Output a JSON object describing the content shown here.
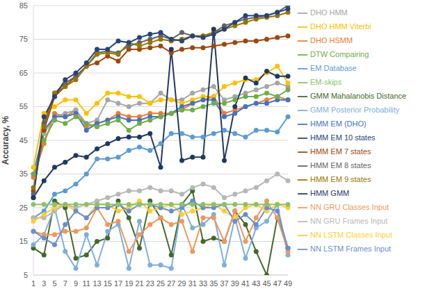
{
  "chart_data": {
    "type": "line",
    "y_label": "Accuracy, %",
    "categories": [
      1,
      3,
      5,
      7,
      9,
      11,
      13,
      15,
      17,
      19,
      21,
      23,
      25,
      27,
      29,
      31,
      33,
      35,
      37,
      39,
      41,
      43,
      45,
      47,
      49
    ],
    "ylim": [
      5,
      85
    ],
    "yticks": [
      5,
      15,
      25,
      35,
      45,
      55,
      65,
      75,
      85
    ],
    "grid": true,
    "legend": "right",
    "marker": "circle",
    "series": [
      {
        "name": "EM Database",
        "color": "#5B9BD5",
        "values": [
          22,
          24,
          29,
          30,
          32,
          35,
          39.5,
          39.5,
          40,
          42,
          43,
          42,
          44,
          47,
          47,
          46,
          46,
          47,
          48,
          47,
          46,
          48,
          48,
          47.5,
          52
        ]
      },
      {
        "name": "DHO HSMM",
        "color": "#ED7D31",
        "values": [
          34,
          44,
          53,
          52,
          54,
          49,
          50,
          51,
          53,
          52,
          52,
          53,
          53,
          53,
          54,
          56,
          57,
          58,
          53,
          54,
          55,
          56,
          57,
          58,
          57
        ]
      },
      {
        "name": "DHO HMM",
        "color": "#A5A5A5",
        "values": [
          35,
          47,
          52,
          53,
          54,
          50,
          51,
          57,
          56,
          55,
          56,
          56,
          59,
          57,
          57,
          59,
          60,
          61,
          57,
          58,
          59,
          60,
          61,
          62,
          61
        ]
      },
      {
        "name": "DHO HMM Viterbi",
        "color": "#FFC000",
        "values": [
          37,
          53,
          55,
          57,
          57,
          53,
          56,
          59,
          59,
          58,
          58,
          56,
          57,
          57,
          56,
          57,
          58,
          58,
          61,
          62,
          63,
          63,
          65,
          67,
          62
        ]
      },
      {
        "name": "HMM EM (DHO)",
        "color": "#4472C4",
        "values": [
          35,
          48,
          52,
          52,
          53,
          48,
          50,
          51,
          52,
          51,
          51,
          52,
          52,
          53,
          55,
          56,
          57,
          57,
          52,
          53,
          55,
          56,
          56,
          57,
          57
        ]
      },
      {
        "name": "DTW Compairing",
        "color": "#70AD47",
        "values": [
          35,
          45,
          51,
          50,
          52,
          50,
          49,
          50,
          51,
          48,
          50,
          51,
          52,
          53,
          54,
          54,
          55,
          56,
          56,
          57,
          58,
          58,
          59,
          58,
          60
        ]
      },
      {
        "name": "HMM EM 7 states",
        "color": "#9E480E",
        "values": [
          30,
          48,
          58,
          61,
          64,
          67,
          68,
          70,
          68.5,
          72,
          72,
          72.5,
          73,
          71,
          72,
          72.5,
          72.5,
          73,
          73.5,
          74,
          74.5,
          74.5,
          75,
          75.5,
          76
        ]
      },
      {
        "name": "HMM EM 8 states",
        "color": "#636363",
        "values": [
          29,
          50,
          59,
          62,
          64,
          67,
          71,
          71.5,
          71,
          73,
          74,
          75,
          76,
          75,
          77,
          76,
          76,
          77,
          79,
          80,
          81,
          81.5,
          82,
          83,
          85
        ]
      },
      {
        "name": "HMM EM 9 states",
        "color": "#997300",
        "values": [
          31,
          49,
          59,
          61,
          63,
          67,
          70.5,
          71,
          70.5,
          74,
          73,
          74,
          75,
          74.5,
          75,
          76,
          76,
          77,
          78,
          79,
          80,
          81,
          81.5,
          82,
          83
        ]
      },
      {
        "name": "HMM EM 10 states",
        "color": "#264478",
        "values": [
          28,
          52,
          58,
          63,
          65,
          68,
          72,
          72,
          74.5,
          74,
          75.5,
          76.5,
          77,
          75,
          74.5,
          76,
          75.5,
          76.5,
          78,
          80,
          82,
          82,
          82,
          83,
          84
        ]
      },
      {
        "name": "HMM GMM",
        "color": "#1F3864",
        "values": [
          28,
          33,
          37,
          38.5,
          40.5,
          40,
          42.5,
          44,
          45.5,
          46,
          46,
          47,
          37,
          72,
          39,
          40,
          40,
          78,
          39,
          55,
          63.5,
          62,
          65.5,
          64,
          64
        ]
      },
      {
        "name": "GMM Mahalanobis Distance",
        "color": "#43682B",
        "values": [
          13,
          11,
          27,
          25,
          10,
          11,
          15,
          16,
          27,
          22,
          13,
          27,
          22,
          11,
          26,
          30,
          15,
          16,
          15,
          24,
          20,
          12,
          5,
          22,
          13
        ]
      },
      {
        "name": "GMM Posterior Probability",
        "color": "#7CAFDD",
        "values": [
          14,
          17,
          25,
          12,
          7,
          17,
          8,
          18,
          20,
          7,
          21,
          8,
          8,
          7,
          26,
          19,
          20,
          23,
          8,
          22,
          10,
          19,
          21,
          26,
          11
        ]
      },
      {
        "name": "NN GRU Classes Input",
        "color": "#F1975A",
        "values": [
          18,
          17,
          17,
          18,
          18,
          19,
          25,
          20,
          21,
          12,
          17,
          20,
          22,
          20,
          21,
          12,
          22,
          22,
          15,
          24,
          15,
          22,
          27,
          22,
          12
        ]
      },
      {
        "name": "NN GRU Frames Input",
        "color": "#B7B7B7",
        "values": [
          22,
          22,
          24,
          26,
          25,
          26,
          27,
          28,
          29,
          30,
          30,
          31,
          30,
          30,
          29,
          31,
          32,
          31,
          28,
          29,
          30,
          31,
          33,
          35,
          33
        ]
      },
      {
        "name": "NN LSTM Classes Input",
        "color": "#FFCD33",
        "values": [
          21,
          23,
          25,
          26,
          24,
          22,
          26,
          26,
          24,
          25,
          27,
          24,
          25,
          26,
          23,
          24,
          25,
          26,
          24,
          22,
          25,
          26,
          24,
          26,
          25
        ]
      },
      {
        "name": "NN LSTM Frames Input",
        "color": "#698ED0",
        "values": [
          18,
          16,
          14,
          20,
          24,
          22,
          25,
          25,
          26,
          24,
          26,
          26,
          25,
          24,
          25,
          27,
          25,
          25,
          26,
          21,
          23,
          20,
          25,
          24,
          13
        ]
      },
      {
        "name": "EM-skips",
        "color": "#8CC168",
        "values": [
          26,
          26,
          26,
          26,
          26,
          26,
          26,
          26,
          26,
          26,
          26,
          26,
          26,
          26,
          26,
          26,
          26,
          26,
          26,
          26,
          26,
          26,
          26,
          26,
          26
        ]
      }
    ]
  }
}
